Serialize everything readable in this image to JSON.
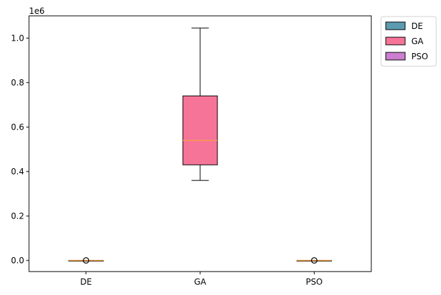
{
  "chart_data": {
    "type": "box",
    "title": "",
    "xlabel": "",
    "ylabel": "",
    "y_scale_label": "1e6",
    "ylim": [
      -0.05,
      1.1
    ],
    "yticks": [
      0.0,
      0.2,
      0.4,
      0.6,
      0.8,
      1.0
    ],
    "ytick_labels": [
      "0.0",
      "0.2",
      "0.4",
      "0.6",
      "0.8",
      "1.0"
    ],
    "categories": [
      "DE",
      "GA",
      "PSO"
    ],
    "series": [
      {
        "name": "DE",
        "color": "#5b9bb0",
        "min": 0.0,
        "q1": 0.0,
        "median": 0.0,
        "q3": 0.0,
        "max": 0.0,
        "outliers": [
          0.0
        ]
      },
      {
        "name": "GA",
        "color": "#f77499",
        "min": 0.36,
        "q1": 0.43,
        "median": 0.54,
        "q3": 0.74,
        "max": 1.045,
        "outliers": []
      },
      {
        "name": "PSO",
        "color": "#cc7fd0",
        "min": 0.0,
        "q1": 0.0,
        "median": 0.0,
        "q3": 0.0,
        "max": 0.0,
        "outliers": [
          0.0
        ]
      }
    ],
    "median_color": "#f39c4a",
    "legend": {
      "position": "outside-top-right",
      "entries": [
        "DE",
        "GA",
        "PSO"
      ]
    },
    "grid": false
  }
}
